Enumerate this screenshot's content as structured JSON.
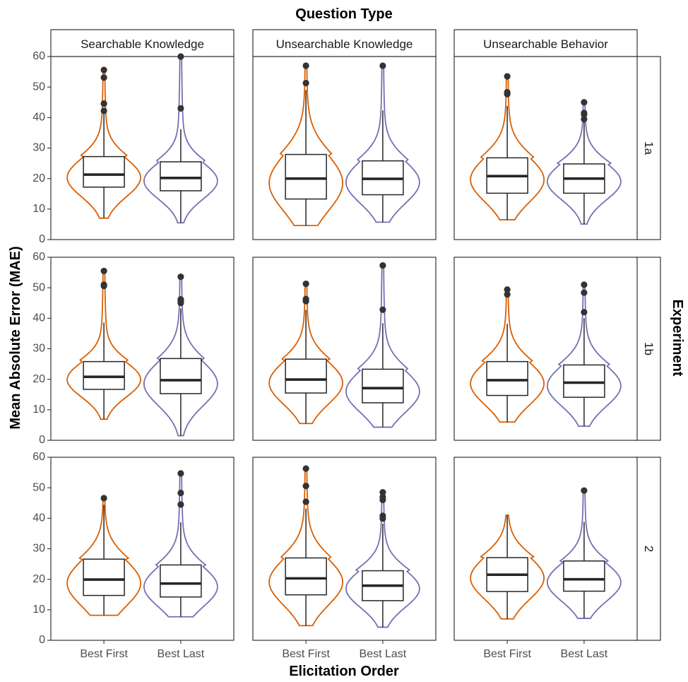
{
  "chart_data": {
    "type": "violin",
    "title": "Question Type",
    "xlabel": "Elicitation Order",
    "ylabel": "Mean Absolute Error (MAE)",
    "facet_row_title": "Experiment",
    "columns": [
      "Searchable Knowledge",
      "Unsearchable Knowledge",
      "Unsearchable Behavior"
    ],
    "rows": [
      "1a",
      "1b",
      "2"
    ],
    "categories": [
      "Best First",
      "Best Last"
    ],
    "ylim": [
      0,
      60
    ],
    "yticks": [
      0,
      10,
      20,
      30,
      40,
      50,
      60
    ],
    "grid": false,
    "colors": {
      "Best First": "#d95f02",
      "Best Last": "#7570b3",
      "box": "#262626"
    },
    "panels": [
      {
        "row": "1a",
        "column": "Searchable Knowledge",
        "groups": [
          {
            "category": "Best First",
            "min": 7,
            "q1": 17.2,
            "median": 21.3,
            "q3": 27.2,
            "whisker_low": 7,
            "whisker_high": 42,
            "max": 55.6,
            "outliers": [
              42.2,
              44.6,
              53.1,
              55.6
            ]
          },
          {
            "category": "Best Last",
            "min": 5.5,
            "q1": 16,
            "median": 20.2,
            "q3": 25.5,
            "whisker_low": 5.5,
            "whisker_high": 36.2,
            "max": 60,
            "outliers": [
              43,
              60
            ]
          }
        ]
      },
      {
        "row": "1a",
        "column": "Unsearchable Knowledge",
        "groups": [
          {
            "category": "Best First",
            "min": 4.6,
            "q1": 13.3,
            "median": 20,
            "q3": 27.9,
            "whisker_low": 4.6,
            "whisker_high": 49,
            "max": 57,
            "outliers": [
              51.3,
              57
            ]
          },
          {
            "category": "Best Last",
            "min": 5.7,
            "q1": 14.7,
            "median": 19.9,
            "q3": 25.8,
            "whisker_low": 5.7,
            "whisker_high": 42.3,
            "max": 57,
            "outliers": [
              57
            ]
          }
        ]
      },
      {
        "row": "1a",
        "column": "Unsearchable Behavior",
        "groups": [
          {
            "category": "Best First",
            "min": 6.5,
            "q1": 15.2,
            "median": 20.8,
            "q3": 26.8,
            "whisker_low": 6.5,
            "whisker_high": 43.8,
            "max": 53.5,
            "outliers": [
              47.7,
              48.3,
              53.5
            ]
          },
          {
            "category": "Best Last",
            "min": 5.1,
            "q1": 15.2,
            "median": 20,
            "q3": 24.8,
            "whisker_low": 5.1,
            "whisker_high": 38.5,
            "max": 45,
            "outliers": [
              39.5,
              41,
              41.5,
              45
            ]
          }
        ]
      },
      {
        "row": "1b",
        "column": "Searchable Knowledge",
        "groups": [
          {
            "category": "Best First",
            "min": 6.9,
            "q1": 16.7,
            "median": 20.8,
            "q3": 25.8,
            "whisker_low": 6.9,
            "whisker_high": 38.6,
            "max": 55.5,
            "outliers": [
              50.6,
              51,
              55.5
            ]
          },
          {
            "category": "Best Last",
            "min": 1.5,
            "q1": 15.3,
            "median": 19.7,
            "q3": 26.8,
            "whisker_low": 1.5,
            "whisker_high": 43.2,
            "max": 53.6,
            "outliers": [
              45,
              45.6,
              46.2,
              53.6
            ]
          }
        ]
      },
      {
        "row": "1b",
        "column": "Unsearchable Knowledge",
        "groups": [
          {
            "category": "Best First",
            "min": 5.5,
            "q1": 15.5,
            "median": 19.9,
            "q3": 26.6,
            "whisker_low": 5.5,
            "whisker_high": 42.7,
            "max": 51.3,
            "outliers": [
              45.6,
              46.3,
              51.3
            ]
          },
          {
            "category": "Best Last",
            "min": 4.3,
            "q1": 12.3,
            "median": 17.1,
            "q3": 23.3,
            "whisker_low": 4.3,
            "whisker_high": 38.4,
            "max": 57.3,
            "outliers": [
              42.8,
              57.3
            ]
          }
        ]
      },
      {
        "row": "1b",
        "column": "Unsearchable Behavior",
        "groups": [
          {
            "category": "Best First",
            "min": 6,
            "q1": 14.7,
            "median": 19.7,
            "q3": 25.8,
            "whisker_low": 6,
            "whisker_high": 38.2,
            "max": 49.4,
            "outliers": [
              47.8,
              49.4
            ]
          },
          {
            "category": "Best Last",
            "min": 4.6,
            "q1": 14.1,
            "median": 18.9,
            "q3": 24.7,
            "whisker_low": 4.6,
            "whisker_high": 40,
            "max": 51,
            "outliers": [
              42,
              48.4,
              51
            ]
          }
        ]
      },
      {
        "row": "2",
        "column": "Searchable Knowledge",
        "groups": [
          {
            "category": "Best First",
            "min": 8.2,
            "q1": 14.7,
            "median": 19.9,
            "q3": 26.6,
            "whisker_low": 8.2,
            "whisker_high": 44.4,
            "max": 46.6,
            "outliers": [
              46.6
            ]
          },
          {
            "category": "Best Last",
            "min": 7.7,
            "q1": 14.2,
            "median": 18.6,
            "q3": 24.7,
            "whisker_low": 7.7,
            "whisker_high": 38.7,
            "max": 54.7,
            "outliers": [
              44.5,
              48.3,
              54.7
            ]
          }
        ]
      },
      {
        "row": "2",
        "column": "Unsearchable Knowledge",
        "groups": [
          {
            "category": "Best First",
            "min": 4.8,
            "q1": 14.9,
            "median": 20.3,
            "q3": 27,
            "whisker_low": 4.8,
            "whisker_high": 43.2,
            "max": 56.3,
            "outliers": [
              45.4,
              50.6,
              56.3
            ]
          },
          {
            "category": "Best Last",
            "min": 4.3,
            "q1": 13,
            "median": 17.9,
            "q3": 22.8,
            "whisker_low": 4.3,
            "whisker_high": 38.2,
            "max": 48.5,
            "outliers": [
              39.9,
              40.8,
              46,
              47,
              48.5
            ]
          }
        ]
      },
      {
        "row": "2",
        "column": "Unsearchable Behavior",
        "groups": [
          {
            "category": "Best First",
            "min": 7,
            "q1": 16,
            "median": 21.5,
            "q3": 27.1,
            "whisker_low": 7,
            "whisker_high": 41,
            "max": 41,
            "outliers": []
          },
          {
            "category": "Best Last",
            "min": 7.2,
            "q1": 16.1,
            "median": 20,
            "q3": 26,
            "whisker_low": 7.2,
            "whisker_high": 38.8,
            "max": 49.1,
            "outliers": [
              49.1
            ]
          }
        ]
      }
    ]
  }
}
